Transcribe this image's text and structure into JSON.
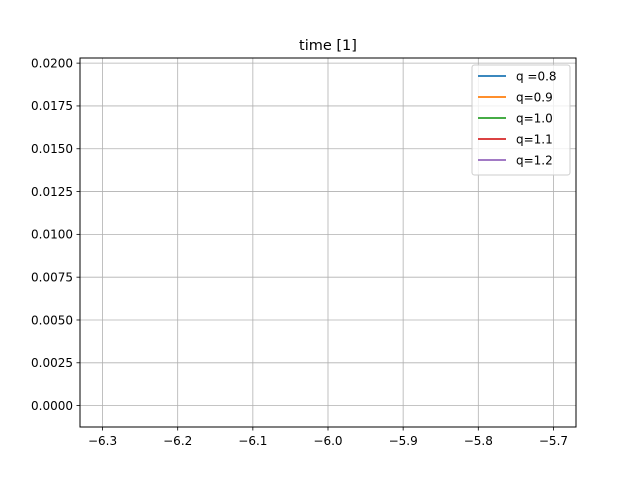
{
  "chart_data": {
    "type": "line",
    "title": "time [1]",
    "xlabel": "",
    "ylabel": "",
    "xlim": [
      -6.33,
      -5.67
    ],
    "ylim": [
      -0.00125,
      0.0203
    ],
    "xticks": [
      -6.3,
      -6.2,
      -6.1,
      -6.0,
      -5.9,
      -5.8,
      -5.7
    ],
    "xtick_labels": [
      "−6.3",
      "−6.2",
      "−6.1",
      "−6.0",
      "−5.9",
      "−5.8",
      "−5.7"
    ],
    "yticks": [
      0.0,
      0.0025,
      0.005,
      0.0075,
      0.01,
      0.0125,
      0.015,
      0.0175,
      0.02
    ],
    "ytick_labels": [
      "0.0000",
      "0.0025",
      "0.0050",
      "0.0075",
      "0.0100",
      "0.0125",
      "0.0150",
      "0.0175",
      "0.0200"
    ],
    "grid": true,
    "legend_position": "top-right",
    "series": [
      {
        "name": "q =0.8",
        "color": "#1f77b4",
        "x": [],
        "y": []
      },
      {
        "name": "q=0.9",
        "color": "#ff7f0e",
        "x": [],
        "y": []
      },
      {
        "name": "q=1.0",
        "color": "#2ca02c",
        "x": [],
        "y": []
      },
      {
        "name": "q=1.1",
        "color": "#d62728",
        "x": [],
        "y": []
      },
      {
        "name": "q=1.2",
        "color": "#9467bd",
        "x": [],
        "y": []
      }
    ]
  }
}
